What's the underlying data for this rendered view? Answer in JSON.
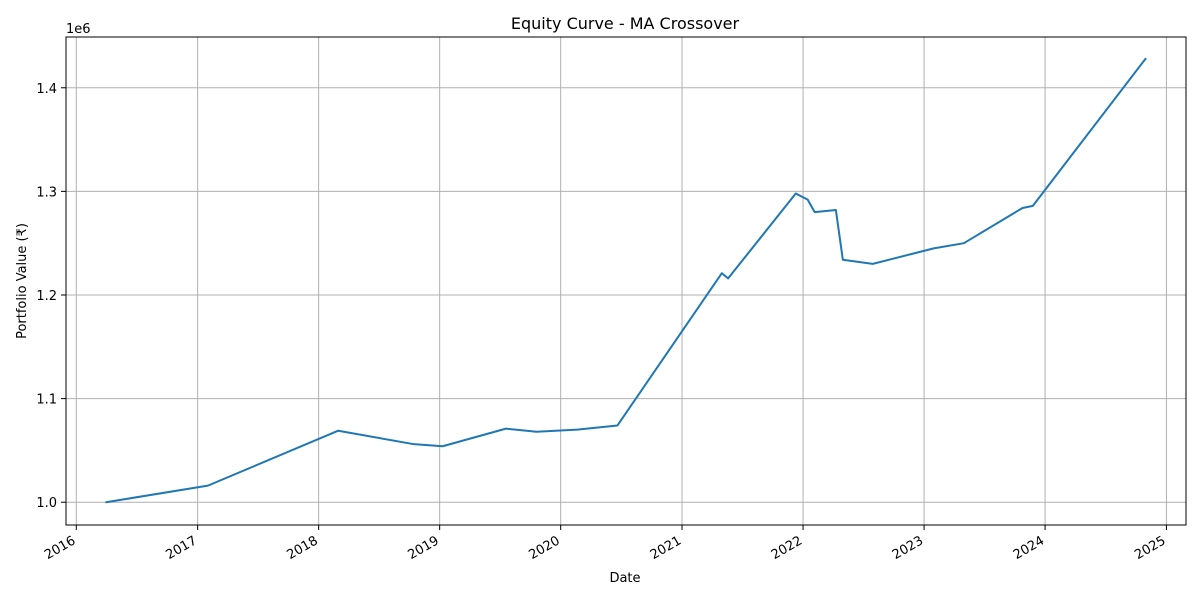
{
  "chart_data": {
    "type": "line",
    "title": "Equity Curve - MA Crossover",
    "xlabel": "Date",
    "ylabel": "Portfolio Value (₹)",
    "y_offset_text": "1e6",
    "x_ticks": [
      "2016-01-01",
      "2017-01-01",
      "2018-01-01",
      "2019-01-01",
      "2020-01-01",
      "2021-01-01",
      "2022-01-01",
      "2023-01-01",
      "2024-01-01",
      "2025-01-01"
    ],
    "x_tick_labels": [
      "2016",
      "2017",
      "2018",
      "2019",
      "2020",
      "2021",
      "2022",
      "2023",
      "2024",
      "2025"
    ],
    "y_ticks": [
      1.0,
      1.1,
      1.2,
      1.3,
      1.4
    ],
    "y_tick_labels": [
      "1.0",
      "1.1",
      "1.2",
      "1.3",
      "1.4"
    ],
    "xlim": [
      "2015-12-01",
      "2025-03-01"
    ],
    "ylim": [
      0.978,
      1.449
    ],
    "grid": true,
    "series": [
      {
        "color": "#1f77b4",
        "points": [
          [
            "2016-03-31",
            1.0
          ],
          [
            "2017-02-01",
            1.016
          ],
          [
            "2018-03-01",
            1.069
          ],
          [
            "2018-10-15",
            1.056
          ],
          [
            "2019-01-10",
            1.054
          ],
          [
            "2019-07-20",
            1.071
          ],
          [
            "2019-10-20",
            1.068
          ],
          [
            "2020-02-20",
            1.07
          ],
          [
            "2020-06-20",
            1.074
          ],
          [
            "2021-05-01",
            1.221
          ],
          [
            "2021-05-20",
            1.216
          ],
          [
            "2021-12-10",
            1.298
          ],
          [
            "2022-01-15",
            1.292
          ],
          [
            "2022-02-05",
            1.28
          ],
          [
            "2022-04-10",
            1.282
          ],
          [
            "2022-05-01",
            1.234
          ],
          [
            "2022-07-30",
            1.23
          ],
          [
            "2023-01-30",
            1.245
          ],
          [
            "2023-05-01",
            1.25
          ],
          [
            "2023-10-25",
            1.284
          ],
          [
            "2023-11-25",
            1.286
          ],
          [
            "2024-10-30",
            1.428
          ]
        ]
      }
    ]
  }
}
